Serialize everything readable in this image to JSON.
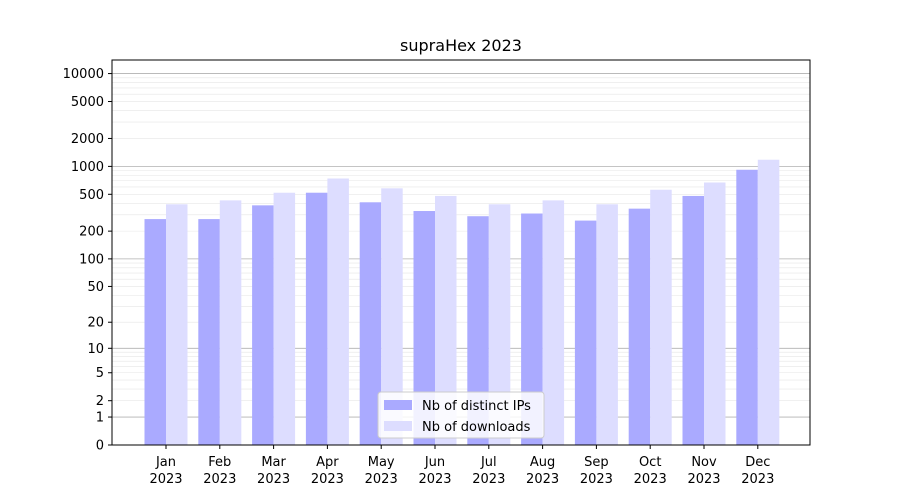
{
  "chart_data": {
    "type": "bar",
    "title": "supraHex 2023",
    "xlabel": "",
    "ylabel": "",
    "yscale": "log(1+y)",
    "ylim": [
      0,
      14000
    ],
    "yticks": [
      0,
      1,
      2,
      5,
      10,
      20,
      50,
      100,
      200,
      500,
      1000,
      2000,
      5000,
      10000
    ],
    "grid": "horizontal",
    "legend_position": "bottom-center",
    "categories": [
      [
        "Jan",
        "2023"
      ],
      [
        "Feb",
        "2023"
      ],
      [
        "Mar",
        "2023"
      ],
      [
        "Apr",
        "2023"
      ],
      [
        "May",
        "2023"
      ],
      [
        "Jun",
        "2023"
      ],
      [
        "Jul",
        "2023"
      ],
      [
        "Aug",
        "2023"
      ],
      [
        "Sep",
        "2023"
      ],
      [
        "Oct",
        "2023"
      ],
      [
        "Nov",
        "2023"
      ],
      [
        "Dec",
        "2023"
      ]
    ],
    "series": [
      {
        "name": "Nb of distinct IPs",
        "color": "#aaaaff",
        "values": [
          270,
          270,
          380,
          520,
          410,
          330,
          290,
          310,
          260,
          350,
          480,
          920
        ]
      },
      {
        "name": "Nb of downloads",
        "color": "#ddddff",
        "values": [
          390,
          430,
          520,
          740,
          580,
          480,
          390,
          430,
          390,
          560,
          670,
          1180
        ]
      }
    ]
  }
}
